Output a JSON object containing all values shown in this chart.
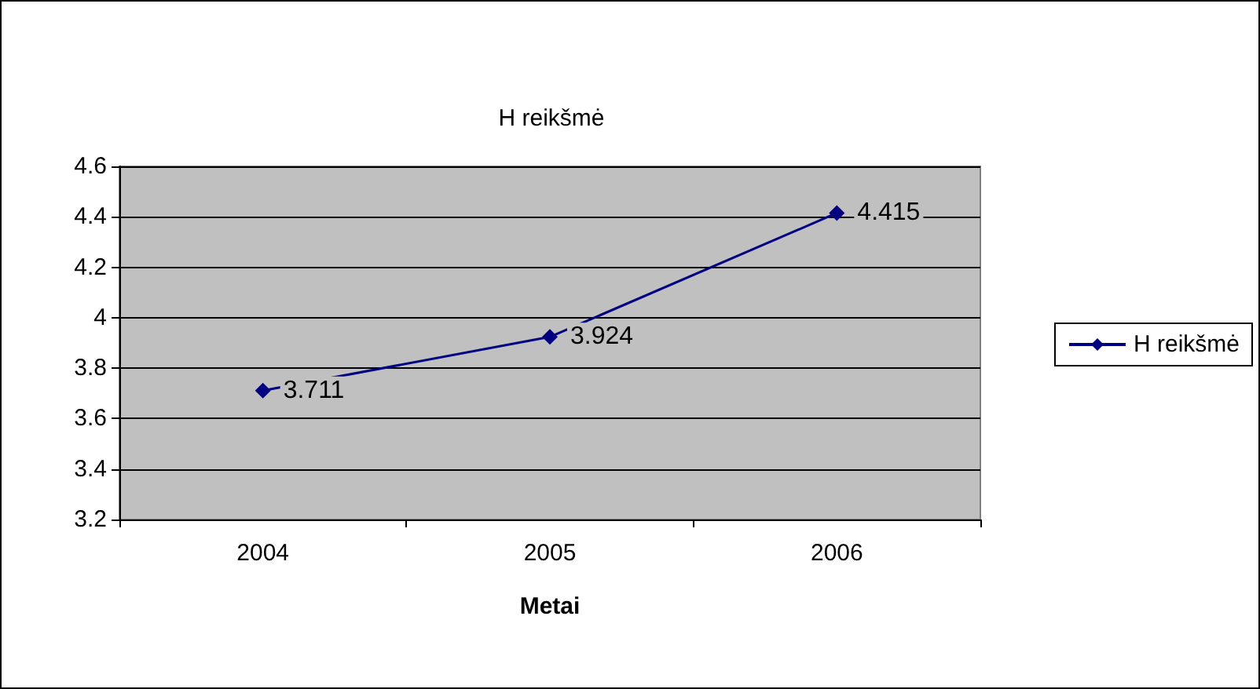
{
  "chart_data": {
    "type": "line",
    "title": "H reikšmė",
    "xlabel": "Metai",
    "categories": [
      "2004",
      "2005",
      "2006"
    ],
    "series": [
      {
        "name": "H reikšmė",
        "color": "#000080",
        "values": [
          3.711,
          3.924,
          4.415
        ]
      }
    ],
    "ylim": [
      3.2,
      4.6
    ],
    "yticks": [
      3.2,
      3.4,
      3.6,
      3.8,
      4,
      4.2,
      4.4,
      4.6
    ],
    "grid": "y",
    "legend": "right",
    "marker": "diamond",
    "line_style": "solid",
    "data_labels": true
  }
}
